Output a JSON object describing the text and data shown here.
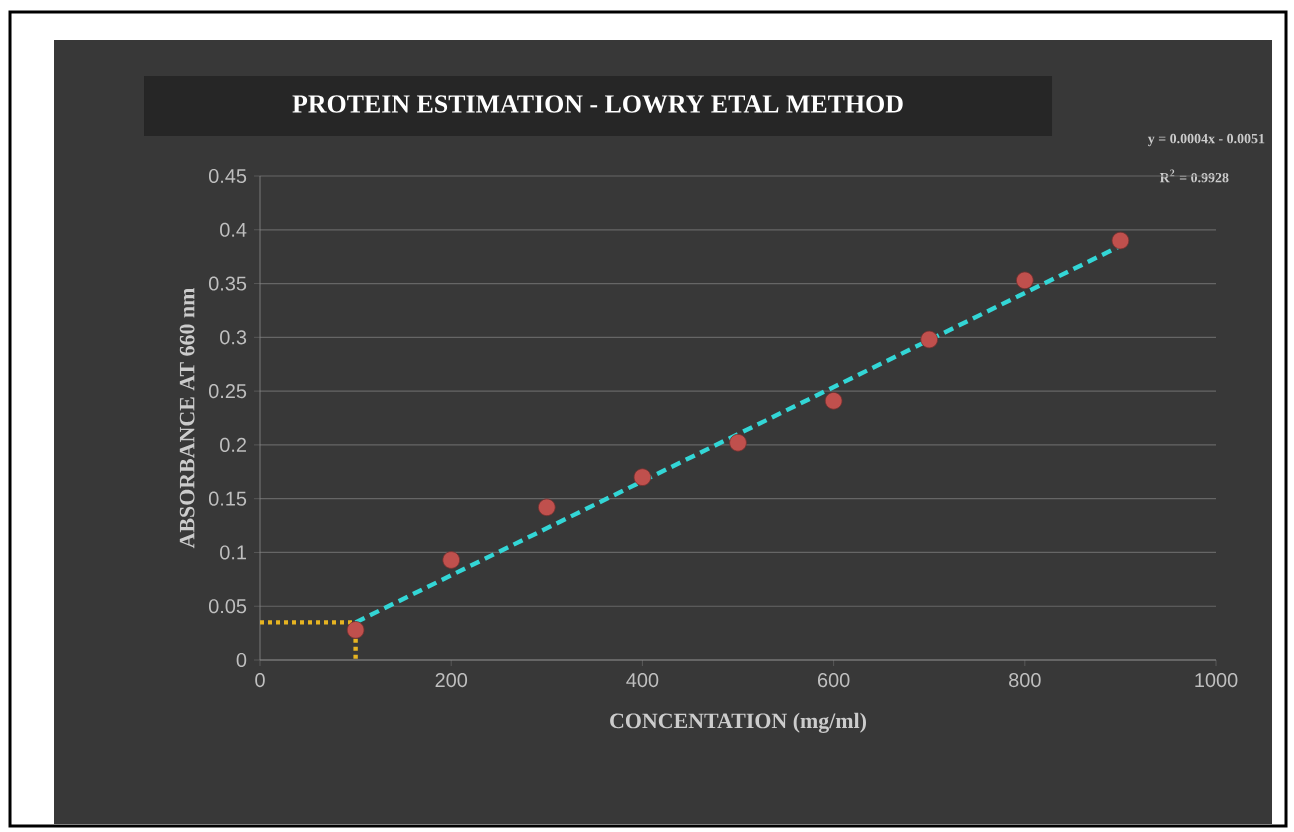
{
  "chart_data": {
    "type": "scatter",
    "title": "PROTEIN ESTIMATION - LOWRY ETAL METHOD",
    "xlabel": "CONCENTATION (mg/ml)",
    "ylabel": "ABSORBANCE AT 660 nm",
    "annotations": [
      "y = 0.0004x - 0.0051",
      "R$^{2}$ = 0.9928"
    ],
    "xlim": [
      0,
      1000
    ],
    "ylim": [
      0,
      0.45
    ],
    "xticks": [
      0,
      200,
      400,
      600,
      800,
      1000
    ],
    "yticks": [
      0,
      0.05,
      0.1,
      0.15,
      0.2,
      0.25,
      0.3,
      0.35,
      0.4,
      0.45
    ],
    "grid": "y",
    "series": [
      {
        "color": "#c0504d",
        "marker": "circle",
        "x": [
          100,
          200,
          300,
          400,
          500,
          600,
          700,
          800,
          900
        ],
        "values": [
          0.028,
          0.093,
          0.142,
          0.17,
          0.202,
          0.241,
          0.298,
          0.353,
          0.39
        ]
      },
      {
        "type": "line",
        "color": "#33d6d6",
        "line_style": "dashed",
        "marker": "none",
        "x": [
          100,
          900
        ],
        "values": [
          0.035,
          0.385
        ]
      },
      {
        "type": "line",
        "color": "#e6b422",
        "line_style": "dotted",
        "marker": "none",
        "x": [
          0,
          100,
          100
        ],
        "values": [
          0.035,
          0.035,
          0
        ]
      }
    ]
  }
}
